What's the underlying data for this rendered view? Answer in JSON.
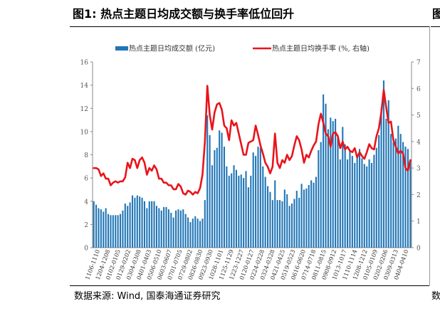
{
  "header": {
    "title": "图1:  热点主题日均成交额与换手率低位回升",
    "next_fragment": "图"
  },
  "footer": {
    "source": "数据来源:  Wind, 国泰海通证券研究",
    "next_fragment": "数"
  },
  "colors": {
    "bar": "#2176b6",
    "line": "#e8141b"
  },
  "chart_data": {
    "type": "bar",
    "title": "",
    "legend": [
      "热点主题日均成交额 (亿元)",
      "热点主题日均换手率 (%, 右轴)"
    ],
    "legend_position": "top",
    "y_left": {
      "min": 0,
      "max": 16,
      "ticks": [
        "0",
        "2",
        "4",
        "6",
        "8",
        "10",
        "12",
        "14",
        "16"
      ]
    },
    "y_right": {
      "min": 0,
      "max": 7,
      "ticks": [
        "0",
        "1",
        "2",
        "3",
        "4",
        "5",
        "6",
        "7"
      ]
    },
    "x_labels": [
      "1106-1110",
      "1204-1208",
      "0102-0105",
      "0129-0202",
      "0304-0308",
      "0401-0403",
      "0506-0510",
      "0603-0607",
      "0701-0705",
      "0729-0802",
      "0826-0830",
      "0923-0930",
      "1028-1101",
      "1125-1129",
      "1223-1227",
      "0120-0127",
      "0224-0228",
      "0324-0328",
      "0421-0425",
      "0519-0523",
      "0616-0620",
      "0714-0718",
      "0811-0815",
      "0908-0912",
      "1013-1017",
      "1110-1114",
      "1208-1212",
      "0105-0109",
      "0202-0206",
      "0309-0313",
      "0404-0410"
    ],
    "series": [
      {
        "name": "热点主题日均成交额 (亿元)",
        "kind": "bar",
        "axis": "left",
        "values": [
          4.0,
          3.7,
          3.4,
          3.3,
          3.1,
          3.4,
          2.9,
          2.8,
          2.8,
          2.8,
          2.8,
          2.9,
          3.2,
          3.8,
          3.6,
          3.9,
          4.5,
          4.3,
          4.5,
          4.4,
          4.3,
          4.0,
          3.4,
          4.0,
          4.0,
          4.0,
          3.6,
          3.4,
          3.2,
          3.5,
          3.5,
          3.3,
          3.0,
          2.6,
          3.2,
          3.3,
          3.2,
          3.3,
          2.9,
          2.6,
          2.2,
          2.5,
          2.7,
          2.5,
          2.3,
          2.5,
          4.1,
          11.4,
          9.7,
          7.1,
          8.4,
          8.6,
          10.1,
          9.9,
          8.7,
          7.0,
          6.2,
          6.4,
          7.1,
          6.7,
          6.2,
          6.3,
          6.0,
          6.6,
          5.2,
          6.2,
          8.2,
          7.9,
          8.7,
          8.6,
          7.0,
          6.1,
          5.3,
          4.8,
          4.1,
          5.8,
          4.1,
          4.1,
          4.0,
          5.0,
          4.6,
          3.6,
          3.8,
          4.2,
          4.9,
          4.3,
          5.5,
          5.0,
          5.1,
          5.4,
          5.8,
          5.6,
          6.1,
          8.4,
          9.1,
          13.2,
          12.4,
          10.2,
          11.2,
          10.9,
          11.1,
          9.7,
          7.6,
          10.4,
          8.9,
          7.6,
          8.4,
          7.9,
          7.3,
          7.8,
          8.5,
          7.7,
          7.2,
          7.0,
          7.6,
          7.3,
          8.0,
          8.6,
          9.7,
          12.0,
          14.4,
          11.1,
          12.7,
          9.8,
          9.1,
          9.4,
          10.5,
          9.8,
          9.1,
          8.7,
          8.5,
          7.5
        ],
        "note": "values transcribed as estimated from the figure"
      },
      {
        "name": "热点主题日均换手率 (%, 右轴)",
        "kind": "line",
        "axis": "right",
        "values": [
          3.0,
          3.0,
          2.95,
          2.7,
          2.8,
          2.6,
          2.6,
          2.35,
          2.45,
          2.5,
          2.45,
          2.5,
          2.5,
          2.65,
          3.2,
          3.0,
          3.35,
          3.3,
          3.0,
          3.3,
          3.4,
          3.2,
          2.75,
          3.0,
          2.9,
          3.1,
          2.95,
          2.6,
          2.6,
          2.45,
          2.45,
          2.35,
          2.35,
          2.2,
          2.2,
          2.4,
          2.3,
          2.05,
          2.0,
          2.15,
          2.1,
          2.0,
          2.1,
          2.05,
          2.25,
          2.75,
          4.0,
          6.1,
          5.0,
          4.45,
          5.1,
          5.4,
          5.45,
          5.2,
          4.6,
          4.5,
          4.05,
          4.8,
          4.6,
          4.7,
          4.3,
          3.9,
          3.5,
          3.5,
          3.95,
          4.0,
          4.05,
          4.6,
          4.25,
          3.85,
          3.55,
          3.2,
          3.05,
          2.8,
          3.05,
          4.3,
          3.2,
          3.0,
          3.3,
          3.2,
          3.5,
          3.3,
          3.45,
          3.85,
          4.2,
          4.05,
          3.7,
          3.2,
          3.5,
          3.4,
          3.65,
          3.85,
          4.0,
          4.65,
          5.05,
          4.7,
          4.3,
          4.2,
          3.8,
          4.3,
          4.35,
          4.2,
          3.75,
          4.0,
          3.7,
          3.8,
          3.65,
          3.6,
          3.75,
          3.4,
          3.6,
          3.45,
          3.35,
          3.6,
          3.9,
          3.75,
          3.7,
          4.2,
          4.5,
          5.1,
          5.95,
          5.3,
          4.7,
          4.75,
          4.05,
          3.8,
          3.55,
          3.65,
          3.55,
          3.0,
          2.9,
          3.3
        ],
        "note": "values transcribed as estimated from the figure"
      }
    ]
  }
}
